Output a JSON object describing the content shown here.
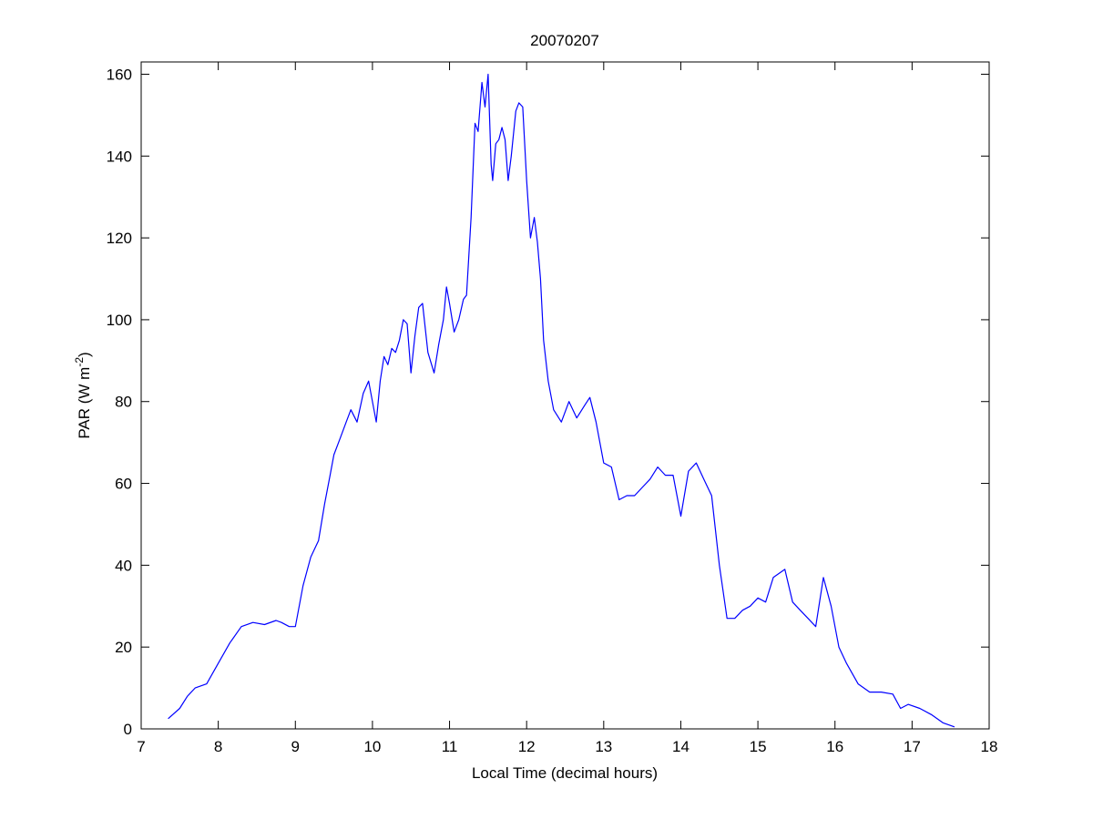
{
  "chart_data": {
    "type": "line",
    "title": "20070207",
    "xlabel": "Local Time (decimal hours)",
    "ylabel": {
      "prefix": "PAR (W m",
      "sup": "-2",
      "suffix": ")"
    },
    "xlim": [
      7,
      18
    ],
    "ylim": [
      0,
      163
    ],
    "xticks": [
      7,
      8,
      9,
      10,
      11,
      12,
      13,
      14,
      15,
      16,
      17,
      18
    ],
    "yticks": [
      0,
      20,
      40,
      60,
      80,
      100,
      120,
      140,
      160
    ],
    "grid": false,
    "line_color": "#0000ff",
    "series": [
      {
        "x": [
          7.35,
          7.5,
          7.6,
          7.7,
          7.85,
          8.0,
          8.15,
          8.3,
          8.45,
          8.6,
          8.75,
          8.82,
          8.92,
          9.0,
          9.1,
          9.2,
          9.3,
          9.38,
          9.45,
          9.5,
          9.58,
          9.66,
          9.72,
          9.8,
          9.88,
          9.95,
          10.05,
          10.1,
          10.15,
          10.2,
          10.25,
          10.3,
          10.35,
          10.4,
          10.45,
          10.5,
          10.55,
          10.6,
          10.65,
          10.72,
          10.8,
          10.86,
          10.92,
          10.96,
          11.0,
          11.06,
          11.12,
          11.18,
          11.22,
          11.28,
          11.33,
          11.37,
          11.42,
          11.46,
          11.5,
          11.54,
          11.56,
          11.6,
          11.64,
          11.68,
          11.72,
          11.76,
          11.8,
          11.86,
          11.9,
          11.95,
          12.0,
          12.05,
          12.1,
          12.14,
          12.18,
          12.22,
          12.28,
          12.35,
          12.45,
          12.55,
          12.65,
          12.75,
          12.82,
          12.9,
          13.0,
          13.1,
          13.2,
          13.3,
          13.4,
          13.5,
          13.6,
          13.7,
          13.8,
          13.9,
          14.0,
          14.1,
          14.2,
          14.3,
          14.4,
          14.5,
          14.6,
          14.7,
          14.8,
          14.9,
          15.0,
          15.1,
          15.2,
          15.35,
          15.45,
          15.55,
          15.65,
          15.75,
          15.85,
          15.95,
          16.05,
          16.15,
          16.3,
          16.45,
          16.6,
          16.75,
          16.85,
          16.95,
          17.1,
          17.25,
          17.4,
          17.55
        ],
        "y": [
          2.5,
          5,
          8,
          10,
          11,
          16,
          21,
          25,
          26,
          25.5,
          26.5,
          26,
          25,
          25,
          35,
          42,
          46,
          55,
          62,
          67,
          71,
          75,
          78,
          75,
          82,
          85,
          75,
          85,
          91,
          89,
          93,
          92,
          95,
          100,
          99,
          87,
          96,
          103,
          104,
          92,
          87,
          94,
          100,
          108,
          104,
          97,
          100,
          105,
          106,
          125,
          148,
          146,
          158,
          152,
          160,
          138,
          134,
          143,
          144,
          147,
          144,
          134,
          140,
          151,
          153,
          152,
          134,
          120,
          125,
          119,
          110,
          95,
          85,
          78,
          75,
          80,
          76,
          79,
          81,
          75,
          65,
          64,
          56,
          57,
          57,
          59,
          61,
          64,
          62,
          62,
          52,
          63,
          65,
          61,
          57,
          40,
          27,
          27,
          29,
          30,
          32,
          31,
          37,
          39,
          31,
          29,
          27,
          25,
          37,
          30,
          20,
          16,
          11,
          9,
          9,
          8.5,
          5,
          6,
          5,
          3.5,
          1.5,
          0.5
        ]
      }
    ]
  }
}
